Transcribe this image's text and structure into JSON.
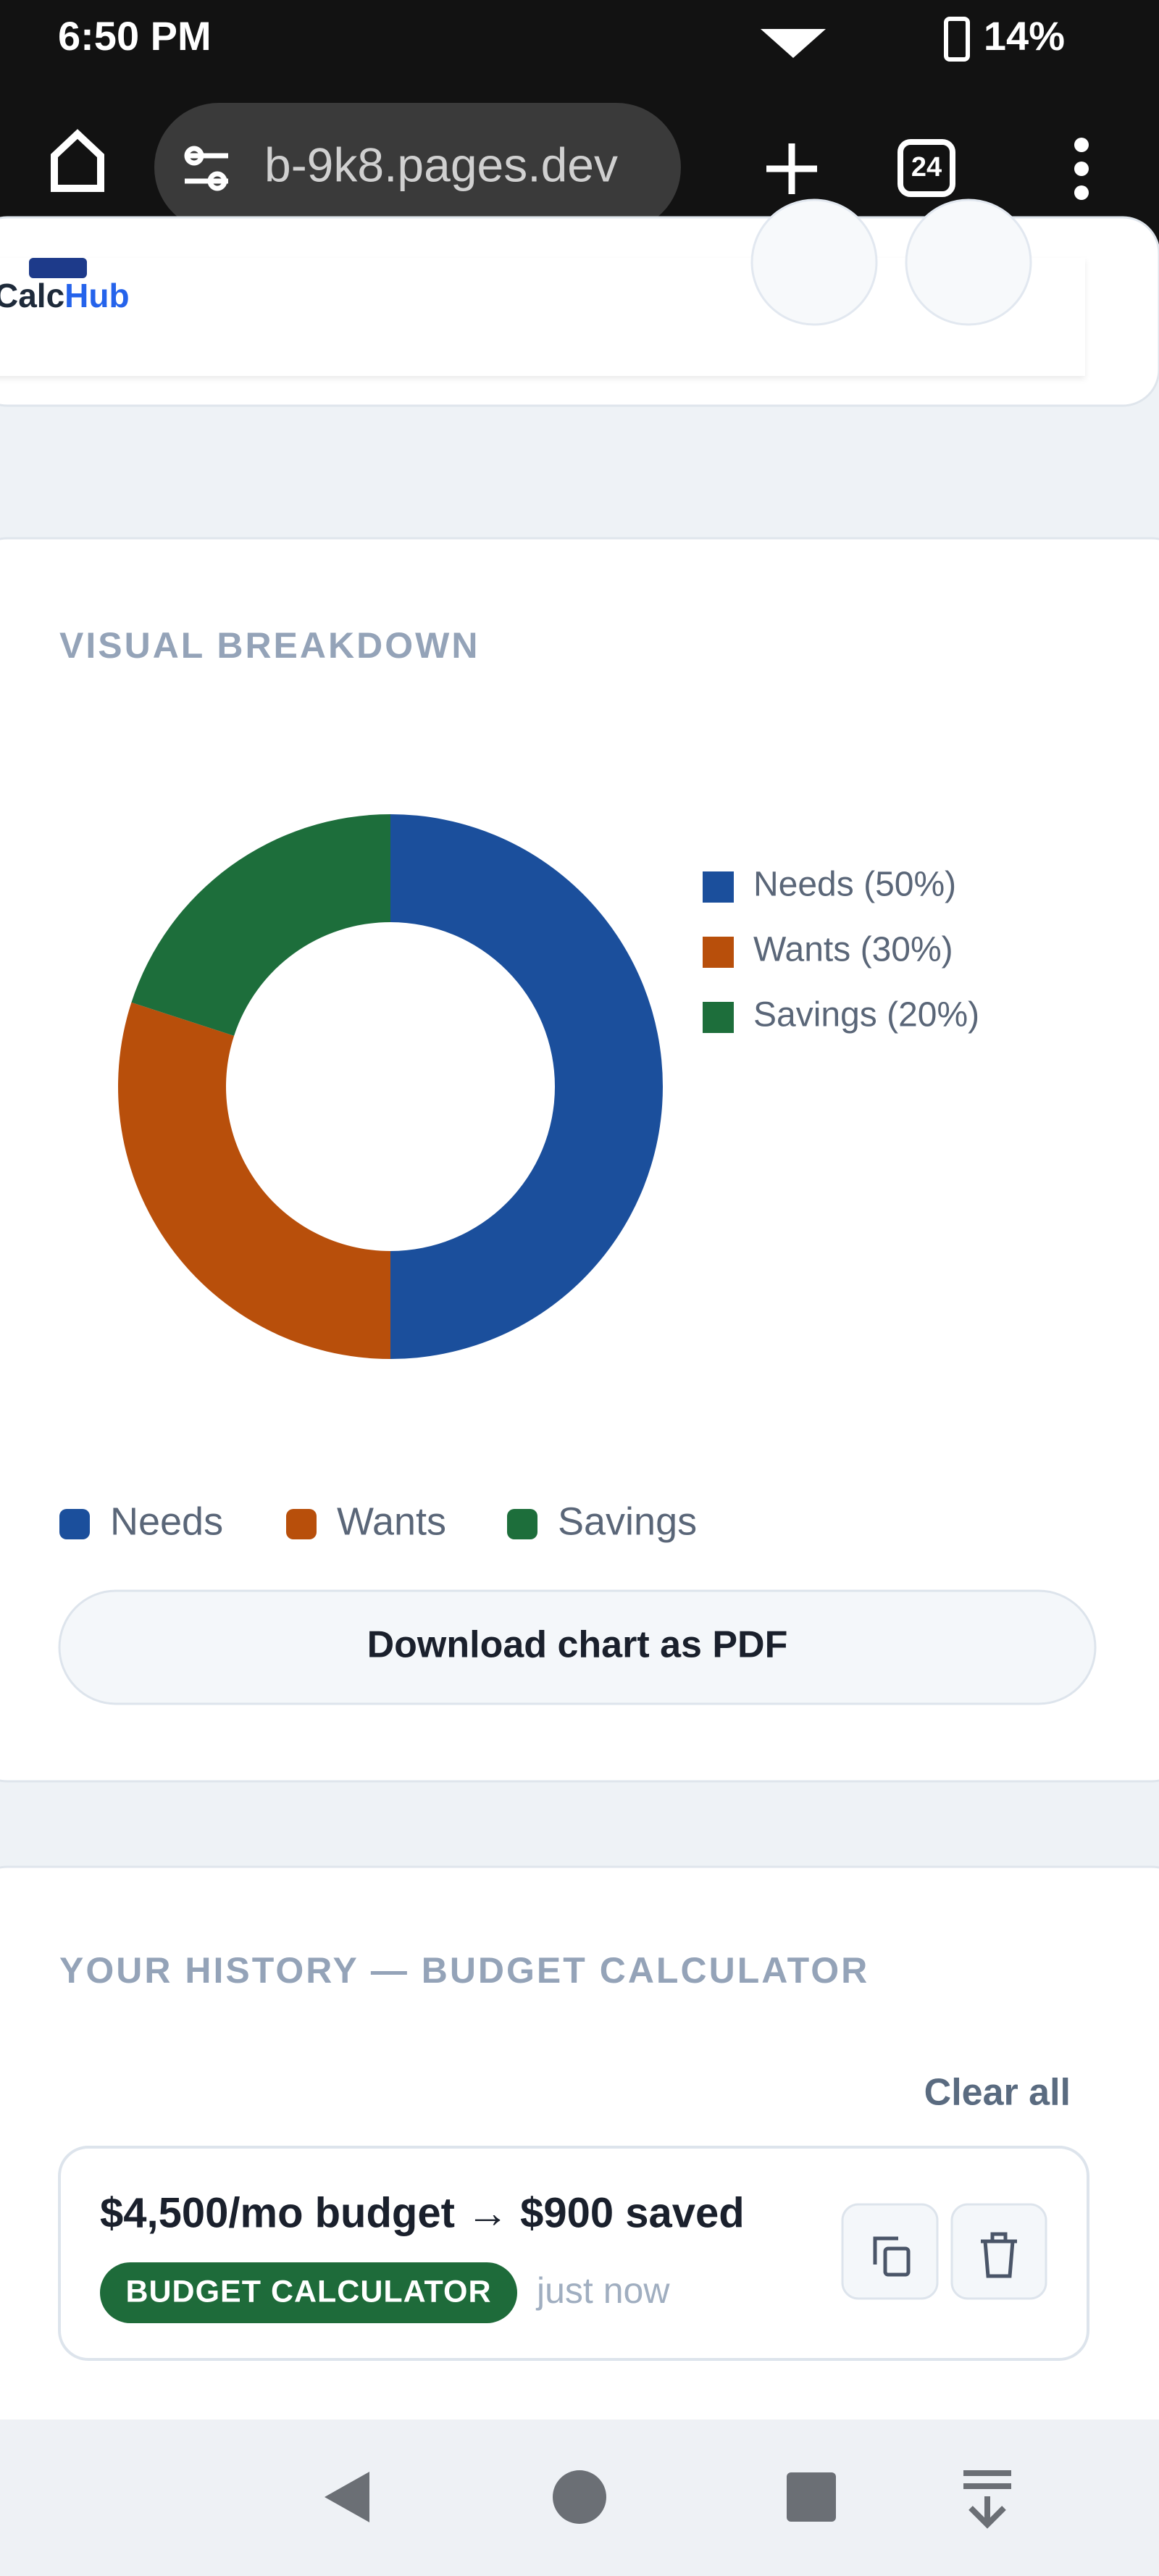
{
  "status_bar": {
    "time": "6:50 PM",
    "battery": "14%"
  },
  "browser": {
    "url": "b-9k8.pages.dev",
    "tabs": "24"
  },
  "header": {
    "logo_calc": "Calc",
    "logo_hub": "Hub"
  },
  "chart_data": {
    "type": "pie",
    "title": "VISUAL BREAKDOWN",
    "categories": [
      "Needs",
      "Wants",
      "Savings"
    ],
    "legend_labels": [
      "Needs (50%)",
      "Wants (30%)",
      "Savings (20%)"
    ],
    "values": [
      50,
      30,
      20
    ],
    "colors": [
      "#1b4f9c",
      "#b84f0b",
      "#1d6e3b"
    ],
    "donut": true
  },
  "download_button": "Download chart as PDF",
  "history": {
    "title": "YOUR HISTORY — BUDGET CALCULATOR",
    "clear": "Clear all",
    "items": [
      {
        "text": "$4,500/mo budget → $900 saved",
        "badge": "BUDGET CALCULATOR",
        "time": "just now"
      }
    ]
  }
}
